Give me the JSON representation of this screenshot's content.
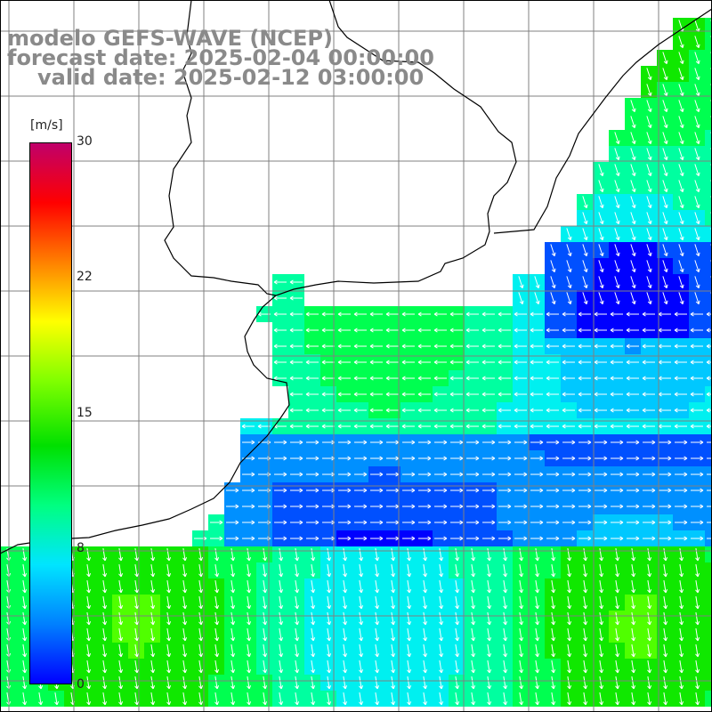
{
  "title": {
    "line1": "modelo GEFS-WAVE (NCEP)",
    "line2": "forecast date: 2025-02-04 00:00:00",
    "line3": "valid date: 2025-02-12 03:00:00"
  },
  "colorbar": {
    "unit": "[m/s]",
    "ticks": [
      "30",
      "22",
      "15",
      "8",
      "0"
    ],
    "tick_values": [
      30,
      22,
      15,
      8,
      0
    ],
    "range": [
      0,
      30
    ],
    "colors": [
      "#0000ff",
      "#0080ff",
      "#00e5ff",
      "#00ff80",
      "#00e000",
      "#80ff00",
      "#ffff00",
      "#ff8000",
      "#ff0000",
      "#c0006a"
    ]
  },
  "map": {
    "grid_color": "#808080",
    "coast_color": "#000000",
    "field": "wind speed",
    "arrow_color": "#ffffff"
  }
}
